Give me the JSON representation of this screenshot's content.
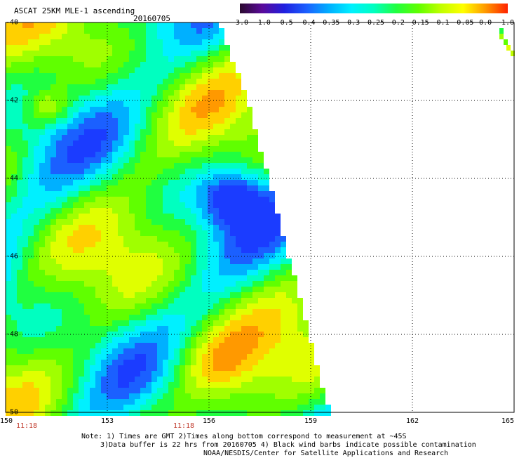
{
  "header": {
    "title": "ASCAT 25KM MLE-1 ascending",
    "date": "20160705"
  },
  "colorbar": {
    "labels": [
      "-3.0",
      "-1.0",
      "-0.5",
      "-0.4",
      "-0.35",
      "-0.3",
      "-0.25",
      "-0.2",
      "-0.15",
      "-0.1",
      "-0.05",
      "0.0",
      "1.0"
    ],
    "colors": [
      "#2a0a2e",
      "#5a0a9a",
      "#2020e0",
      "#1b60ff",
      "#00b0ff",
      "#00f0ff",
      "#00ffc0",
      "#20ff40",
      "#60ff00",
      "#c0ff00",
      "#ffff00",
      "#ff9900",
      "#ff2200"
    ]
  },
  "axes": {
    "x_ticks": [
      "150",
      "153",
      "156",
      "159",
      "162",
      "165"
    ],
    "y_ticks": [
      "-40",
      "-42",
      "-44",
      "-46",
      "-48",
      "-50"
    ],
    "x_range": [
      150,
      165
    ],
    "y_range": [
      -50,
      -40
    ]
  },
  "times": [
    "11:18",
    "11:18"
  ],
  "notes": {
    "line1": "Note: 1) Times are GMT 2)Times along bottom correspond to measurement at ~45S",
    "line2": "3)Data buffer is 22 hrs from 20160705 4) Black wind barbs indicate possible contamination",
    "line3": "NOAA/NESDIS/Center for Satellite Applications and Research"
  }
}
